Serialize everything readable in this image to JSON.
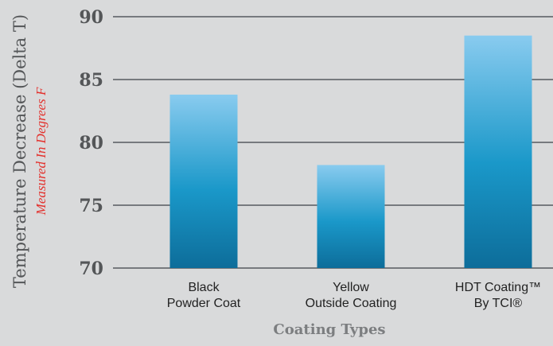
{
  "chart_data": {
    "type": "bar",
    "title": "",
    "ylabel": "Temperature Decrease (Delta T)",
    "ylabel_sub": "Measured In Degrees F",
    "xlabel": "Coating Types",
    "ylim": [
      70,
      90
    ],
    "yticks": [
      "70",
      "75",
      "80",
      "85",
      "90"
    ],
    "grid": true,
    "categories": [
      {
        "line1": "Black",
        "line2": "Powder Coat"
      },
      {
        "line1": "Yellow",
        "line2": "Outside Coating"
      },
      {
        "line1": "HDT Coating™",
        "line2": "By TCI®"
      }
    ],
    "values": [
      83.8,
      78.2,
      88.5
    ],
    "colors": {
      "bar_top": "#89cbef",
      "bar_mid": "#1a98c9",
      "bar_bottom": "#0d6d9a",
      "grid": "#3d4247",
      "background": "#d9dadb"
    }
  }
}
